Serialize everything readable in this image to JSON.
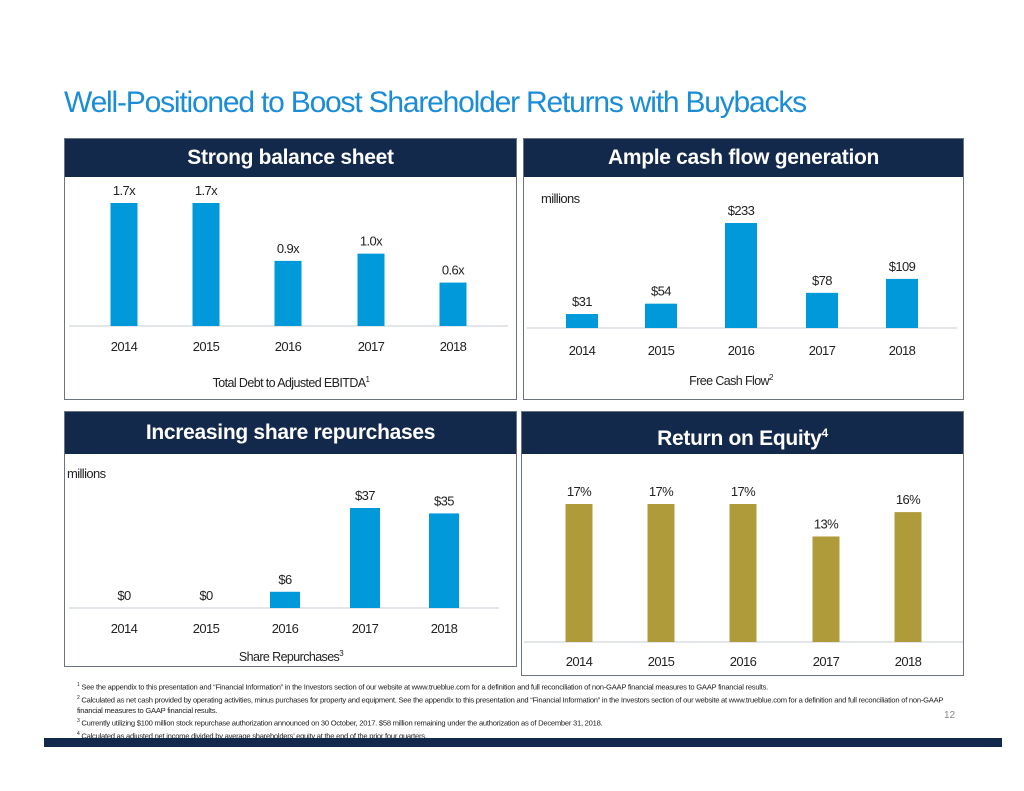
{
  "title": "Well-Positioned to Boost Shareholder Returns with Buybacks",
  "page_number": "12",
  "colors": {
    "navy": "#13294B",
    "blue_bar": "#0099DA",
    "gold_bar": "#B09B3B",
    "title": "#1A8CD8"
  },
  "footnotes": [
    {
      "num": "1",
      "text": "See the appendix to this presentation and “Financial Information” in the Investors section of our website at www.trueblue.com for a definition and full reconciliation of non-GAAP financial measures to GAAP financial results."
    },
    {
      "num": "2",
      "text": "Calculated as net cash provided by operating activities, minus purchases for property and equipment. See the appendix to this presentation and “Financial Information” in the Investors section of our website at www.trueblue.com for a definition and full reconciliation of non-GAAP financial measures to GAAP financial results."
    },
    {
      "num": "3",
      "text": "Currently utilizing $100 million stock repurchase authorization announced on 30 October, 2017. $58 million remaining under the authorization as of December 31, 2018."
    },
    {
      "num": "4",
      "text": "Calculated as adjusted net income divided by average shareholders’ equity at the end of the prior four quarters."
    }
  ],
  "chart_data": [
    {
      "type": "bar",
      "title": "Strong balance sheet",
      "title_sup": "",
      "unit_label": "",
      "xlabel": "Total Debt to Adjusted EBITDA",
      "xlabel_sup": "1",
      "categories": [
        "2014",
        "2015",
        "2016",
        "2017",
        "2018"
      ],
      "values": [
        1.7,
        1.7,
        0.9,
        1.0,
        0.6
      ],
      "data_labels": [
        "1.7x",
        "1.7x",
        "0.9x",
        "1.0x",
        "0.6x"
      ],
      "ylim": [
        0,
        1.7
      ],
      "color": "#0099DA"
    },
    {
      "type": "bar",
      "title": "Ample cash flow generation",
      "title_sup": "",
      "unit_label": "millions",
      "xlabel": "Free Cash Flow",
      "xlabel_sup": "2",
      "categories": [
        "2014",
        "2015",
        "2016",
        "2017",
        "2018"
      ],
      "values": [
        31,
        54,
        233,
        78,
        109
      ],
      "data_labels": [
        "$31",
        "$54",
        "$233",
        "$78",
        "$109"
      ],
      "ylim": [
        0,
        233
      ],
      "color": "#0099DA"
    },
    {
      "type": "bar",
      "title": "Increasing share repurchases",
      "title_sup": "",
      "unit_label": "millions",
      "xlabel": "Share Repurchases",
      "xlabel_sup": "3",
      "categories": [
        "2014",
        "2015",
        "2016",
        "2017",
        "2018"
      ],
      "values": [
        0,
        0,
        6,
        37,
        35
      ],
      "data_labels": [
        "$0",
        "$0",
        "$6",
        "$37",
        "$35"
      ],
      "ylim": [
        0,
        37
      ],
      "color": "#0099DA"
    },
    {
      "type": "bar",
      "title": "Return on Equity",
      "title_sup": "4",
      "unit_label": "",
      "xlabel": "",
      "xlabel_sup": "",
      "categories": [
        "2014",
        "2015",
        "2016",
        "2017",
        "2018"
      ],
      "values": [
        17,
        17,
        17,
        13,
        16
      ],
      "data_labels": [
        "17%",
        "17%",
        "17%",
        "13%",
        "16%"
      ],
      "ylim": [
        0,
        17
      ],
      "color": "#B09B3B"
    }
  ]
}
